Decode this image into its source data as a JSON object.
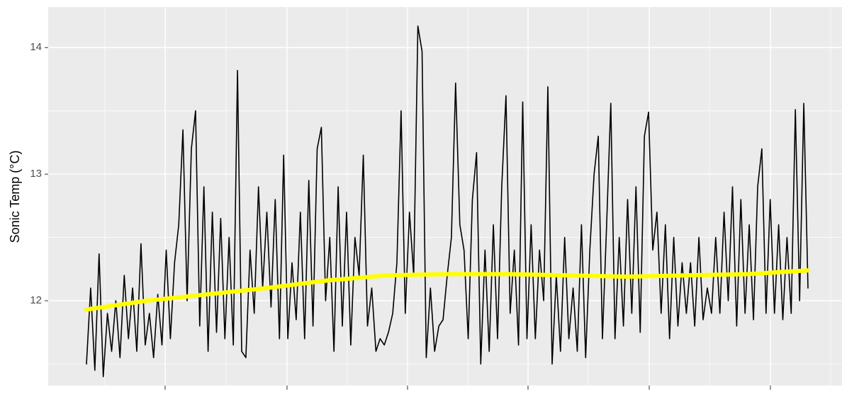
{
  "chart_data": {
    "type": "line",
    "y_label": "Sonic Temp (°C)",
    "ylim": [
      11.33,
      14.32
    ],
    "yticks": [
      12,
      13,
      14
    ],
    "grid": true,
    "series": [
      {
        "color": "#000000",
        "values": [
          11.5,
          12.1,
          11.45,
          12.37,
          11.4,
          11.9,
          11.6,
          12.0,
          11.55,
          12.2,
          11.7,
          12.1,
          11.6,
          12.45,
          11.65,
          11.9,
          11.55,
          12.05,
          11.65,
          12.4,
          11.7,
          12.3,
          12.6,
          13.35,
          12.0,
          13.2,
          13.5,
          11.8,
          12.9,
          11.6,
          12.7,
          11.75,
          12.65,
          11.7,
          12.5,
          11.65,
          13.82,
          11.6,
          11.55,
          12.4,
          11.9,
          12.9,
          12.1,
          12.7,
          11.95,
          12.8,
          11.7,
          13.15,
          11.7,
          12.3,
          11.85,
          12.7,
          11.7,
          12.95,
          11.8,
          13.2,
          13.37,
          12.0,
          12.5,
          11.6,
          12.9,
          11.8,
          12.7,
          11.65,
          12.5,
          12.2,
          13.15,
          11.8,
          12.1,
          11.6,
          11.7,
          11.65,
          11.75,
          11.9,
          12.3,
          13.5,
          11.9,
          12.7,
          12.2,
          14.17,
          13.97,
          11.55,
          12.1,
          11.6,
          11.8,
          11.85,
          12.2,
          12.5,
          13.72,
          12.6,
          12.4,
          11.7,
          12.8,
          13.17,
          11.5,
          12.4,
          11.6,
          12.6,
          11.7,
          12.9,
          13.62,
          11.9,
          12.4,
          11.65,
          13.57,
          11.7,
          12.6,
          11.7,
          12.4,
          12.0,
          13.69,
          11.5,
          12.2,
          11.6,
          12.5,
          11.7,
          12.1,
          11.6,
          12.6,
          11.55,
          12.4,
          13.0,
          13.3,
          11.7,
          12.6,
          13.56,
          11.7,
          12.5,
          11.8,
          12.8,
          11.9,
          12.9,
          11.75,
          13.3,
          13.49,
          12.4,
          12.7,
          11.9,
          12.6,
          11.7,
          12.5,
          11.8,
          12.3,
          11.9,
          12.3,
          11.8,
          12.5,
          11.85,
          12.1,
          11.9,
          12.5,
          11.9,
          12.7,
          12.0,
          12.9,
          11.8,
          12.8,
          11.9,
          12.6,
          11.85,
          12.9,
          13.2,
          11.9,
          12.8,
          11.9,
          12.6,
          11.85,
          12.5,
          11.9,
          13.51,
          12.0,
          13.56,
          12.1
        ]
      },
      {
        "color": "#ffff00",
        "values": [
          11.93,
          12.0,
          12.05,
          12.1,
          12.16,
          12.2,
          12.21,
          12.21,
          12.2,
          12.19,
          12.2,
          12.21,
          12.24
        ]
      }
    ]
  }
}
